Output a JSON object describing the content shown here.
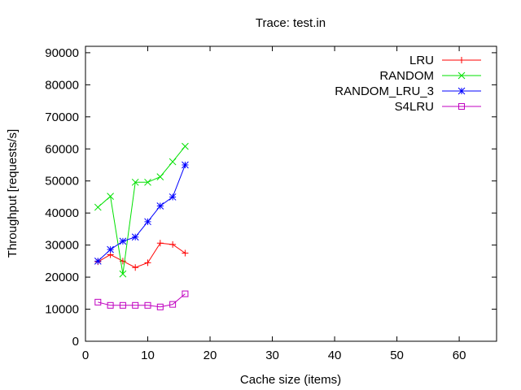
{
  "chart_data": {
    "type": "line",
    "title": "Trace: test.in",
    "xlabel": "Cache size (items)",
    "ylabel": "Throughput [requests/s]",
    "xlim": [
      0,
      66
    ],
    "ylim": [
      0,
      92000
    ],
    "xticks": [
      0,
      10,
      20,
      30,
      40,
      50,
      60
    ],
    "yticks": [
      0,
      10000,
      20000,
      30000,
      40000,
      50000,
      60000,
      70000,
      80000,
      90000
    ],
    "grid": false,
    "legend_position": "top-right",
    "x": [
      2,
      4,
      6,
      8,
      10,
      12,
      14,
      16
    ],
    "series": [
      {
        "name": "LRU",
        "color": "#ff0000",
        "marker": "plus",
        "values": [
          24800,
          27000,
          25000,
          23000,
          24500,
          30600,
          30200,
          27500
        ]
      },
      {
        "name": "RANDOM",
        "color": "#00e000",
        "marker": "cross",
        "values": [
          41800,
          45200,
          21000,
          49600,
          49600,
          51300,
          56000,
          60800
        ]
      },
      {
        "name": "RANDOM_LRU_3",
        "color": "#0000ff",
        "marker": "star",
        "values": [
          25000,
          28600,
          31200,
          32500,
          37300,
          42200,
          45000,
          55000
        ]
      },
      {
        "name": "S4LRU",
        "color": "#c000c0",
        "marker": "square",
        "values": [
          12200,
          11200,
          11200,
          11200,
          11200,
          10700,
          11500,
          14800
        ]
      }
    ]
  }
}
